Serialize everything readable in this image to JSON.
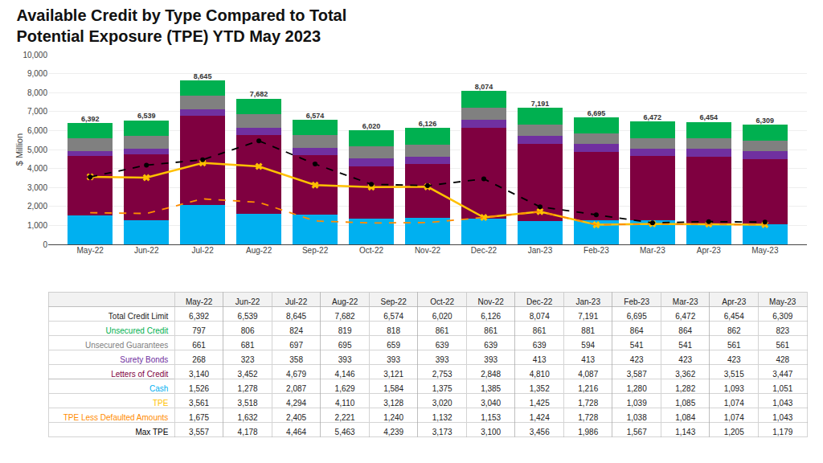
{
  "chart_data": {
    "type": "bar",
    "stacked": true,
    "title": "Available Credit by Type Compared to Total",
    "subtitle": "Potential Exposure (TPE) YTD May 2023",
    "ylabel": "$ Million",
    "categories": [
      "May-22",
      "Jun-22",
      "Jul-22",
      "Aug-22",
      "Sep-22",
      "Oct-22",
      "Nov-22",
      "Dec-22",
      "Jan-23",
      "Feb-23",
      "Mar-23",
      "Apr-23",
      "May-23"
    ],
    "ylim": [
      0,
      10000
    ],
    "yticks": [
      0,
      {
        "value": 1000,
        "label": "1,000"
      },
      {
        "value": 2000,
        "label": "2,000"
      },
      {
        "value": 3000,
        "label": "3,000"
      },
      {
        "value": 4000,
        "label": "4,000"
      },
      {
        "value": 5000,
        "label": "5,000"
      },
      {
        "value": 6000,
        "label": "6,000"
      },
      {
        "value": 7000,
        "label": "7,000"
      },
      {
        "value": 8000,
        "label": "8,000"
      },
      {
        "value": 9000,
        "label": "9,000"
      },
      {
        "value": 10000,
        "label": "10,000"
      }
    ],
    "grid": true,
    "totals": {
      "name": "Total Credit Limit",
      "values": [
        6392,
        6539,
        8645,
        7682,
        6574,
        6020,
        6126,
        8074,
        7191,
        6695,
        6472,
        6454,
        6309
      ],
      "value_labels": [
        "6,392",
        "6,539",
        "8,645",
        "7,682",
        "6,574",
        "6,020",
        "6,126",
        "8,074",
        "7,191",
        "6,695",
        "6,472",
        "6,454",
        "6,309"
      ]
    },
    "series": [
      {
        "name": "Cash",
        "type": "bar",
        "color": "#00b0f0",
        "values": [
          1526,
          1278,
          2087,
          1629,
          1584,
          1375,
          1385,
          1352,
          1216,
          1280,
          1282,
          1093,
          1051
        ],
        "value_labels": [
          "1,526",
          "1,278",
          "2,087",
          "1,629",
          "1,584",
          "1,375",
          "1,385",
          "1,352",
          "1,216",
          "1,280",
          "1,282",
          "1,093",
          "1,051"
        ]
      },
      {
        "name": "Letters of Credit",
        "type": "bar",
        "color": "#7f0040",
        "values": [
          3140,
          3452,
          4679,
          4146,
          3121,
          2753,
          2848,
          4810,
          4087,
          3587,
          3362,
          3515,
          3447
        ],
        "value_labels": [
          "3,140",
          "3,452",
          "4,679",
          "4,146",
          "3,121",
          "2,753",
          "2,848",
          "4,810",
          "4,087",
          "3,587",
          "3,362",
          "3,515",
          "3,447"
        ]
      },
      {
        "name": "Surety Bonds",
        "type": "bar",
        "color": "#7030a0",
        "values": [
          268,
          323,
          358,
          393,
          393,
          393,
          393,
          413,
          413,
          423,
          423,
          423,
          428
        ]
      },
      {
        "name": "Unsecured Guarantees",
        "type": "bar",
        "color": "#808080",
        "values": [
          661,
          681,
          697,
          695,
          659,
          639,
          639,
          639,
          594,
          541,
          541,
          561,
          561
        ]
      },
      {
        "name": "Unsecured Credit",
        "type": "bar",
        "color": "#00b050",
        "values": [
          797,
          806,
          824,
          819,
          818,
          861,
          861,
          861,
          881,
          864,
          864,
          862,
          823
        ]
      },
      {
        "name": "TPE",
        "type": "line",
        "color": "#ffc000",
        "marker": "x",
        "line_style": "solid",
        "values": [
          3561,
          3518,
          4294,
          4110,
          3128,
          3020,
          3040,
          1425,
          1728,
          1039,
          1085,
          1074,
          1043
        ],
        "value_labels": [
          "3,561",
          "3,518",
          "4,294",
          "4,110",
          "3,128",
          "3,020",
          "3,040",
          "1,425",
          "1,728",
          "1,039",
          "1,085",
          "1,074",
          "1,043"
        ]
      },
      {
        "name": "TPE Less Defaulted Amounts",
        "type": "line",
        "color": "#ff8c00",
        "line_style": "dash",
        "values": [
          1675,
          1632,
          2405,
          2221,
          1240,
          1132,
          1153,
          1424,
          1728,
          1038,
          1084,
          1074,
          1043
        ],
        "value_labels": [
          "1,675",
          "1,632",
          "2,405",
          "2,221",
          "1,240",
          "1,132",
          "1,153",
          "1,424",
          "1,728",
          "1,038",
          "1,084",
          "1,074",
          "1,043"
        ]
      },
      {
        "name": "Max TPE",
        "type": "line",
        "color": "#000000",
        "marker": "circle",
        "line_style": "dash",
        "values": [
          3557,
          4178,
          4464,
          5463,
          4239,
          3173,
          3100,
          3456,
          1986,
          1567,
          1143,
          1205,
          1179
        ],
        "value_labels": [
          "3,557",
          "4,178",
          "4,464",
          "5,463",
          "4,239",
          "3,173",
          "3,100",
          "3,456",
          "1,986",
          "1,567",
          "1,143",
          "1,205",
          "1,179"
        ]
      }
    ]
  }
}
